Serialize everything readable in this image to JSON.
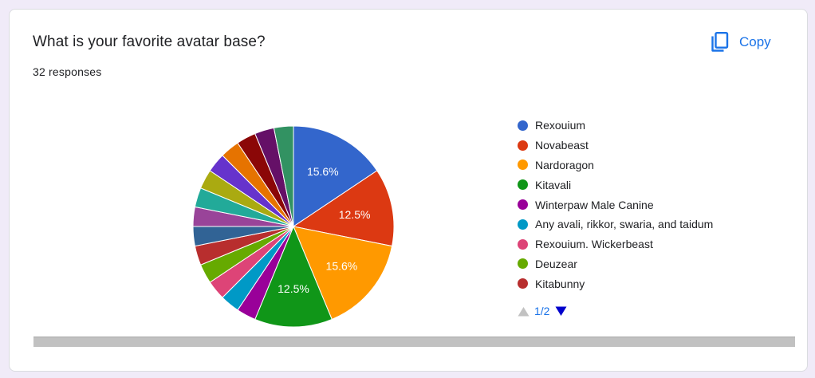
{
  "question": {
    "title": "What is your favorite avatar base?",
    "response_count": "32 responses"
  },
  "toolbar": {
    "copy_label": "Copy",
    "copy_icon": "copy-icon"
  },
  "legend": {
    "items": [
      {
        "label": "Rexouium",
        "color": "#3366cc"
      },
      {
        "label": "Novabeast",
        "color": "#dc3912"
      },
      {
        "label": "Nardoragon",
        "color": "#ff9900"
      },
      {
        "label": "Kitavali",
        "color": "#109618"
      },
      {
        "label": "Winterpaw Male Canine",
        "color": "#990099"
      },
      {
        "label": "Any avali, rikkor, swaria, and taidum",
        "color": "#0099c6"
      },
      {
        "label": "Rexouium. Wickerbeast",
        "color": "#dd4477"
      },
      {
        "label": "Deuzear",
        "color": "#66aa00"
      },
      {
        "label": "Kitabunny",
        "color": "#b82e2e"
      }
    ],
    "pager": {
      "label": "1/2",
      "prev_icon": "triangle-up-icon",
      "next_icon": "triangle-down-icon"
    }
  },
  "chart_data": {
    "type": "pie",
    "total_responses": 32,
    "start_angle_deg": 90,
    "direction": "clockwise",
    "slices": [
      {
        "category": "Rexouium",
        "value": 5,
        "percent_label": "15.6%",
        "color": "#3366cc"
      },
      {
        "category": "Novabeast",
        "value": 4,
        "percent_label": "12.5%",
        "color": "#dc3912"
      },
      {
        "category": "Nardoragon",
        "value": 5,
        "percent_label": "15.6%",
        "color": "#ff9900"
      },
      {
        "category": "Kitavali",
        "value": 4,
        "percent_label": "12.5%",
        "color": "#109618"
      },
      {
        "category": "Winterpaw Male Canine",
        "value": 1,
        "percent_label": "",
        "color": "#990099"
      },
      {
        "category": "Any avali, rikkor, swaria, and taidum",
        "value": 1,
        "percent_label": "",
        "color": "#0099c6"
      },
      {
        "category": "Rexouium. Wickerbeast",
        "value": 1,
        "percent_label": "",
        "color": "#dd4477"
      },
      {
        "category": "Deuzear",
        "value": 1,
        "percent_label": "",
        "color": "#66aa00"
      },
      {
        "category": "Kitabunny",
        "value": 1,
        "percent_label": "",
        "color": "#b82e2e"
      },
      {
        "category": "",
        "value": 1,
        "percent_label": "",
        "color": "#316395"
      },
      {
        "category": "",
        "value": 1,
        "percent_label": "",
        "color": "#994499"
      },
      {
        "category": "",
        "value": 1,
        "percent_label": "",
        "color": "#22aa99"
      },
      {
        "category": "",
        "value": 1,
        "percent_label": "",
        "color": "#aaaa11"
      },
      {
        "category": "",
        "value": 1,
        "percent_label": "",
        "color": "#6633cc"
      },
      {
        "category": "",
        "value": 1,
        "percent_label": "",
        "color": "#e67300"
      },
      {
        "category": "",
        "value": 1,
        "percent_label": "",
        "color": "#8b0707"
      },
      {
        "category": "",
        "value": 1,
        "percent_label": "",
        "color": "#651067"
      },
      {
        "category": "",
        "value": 1,
        "percent_label": "",
        "color": "#329262"
      }
    ]
  }
}
